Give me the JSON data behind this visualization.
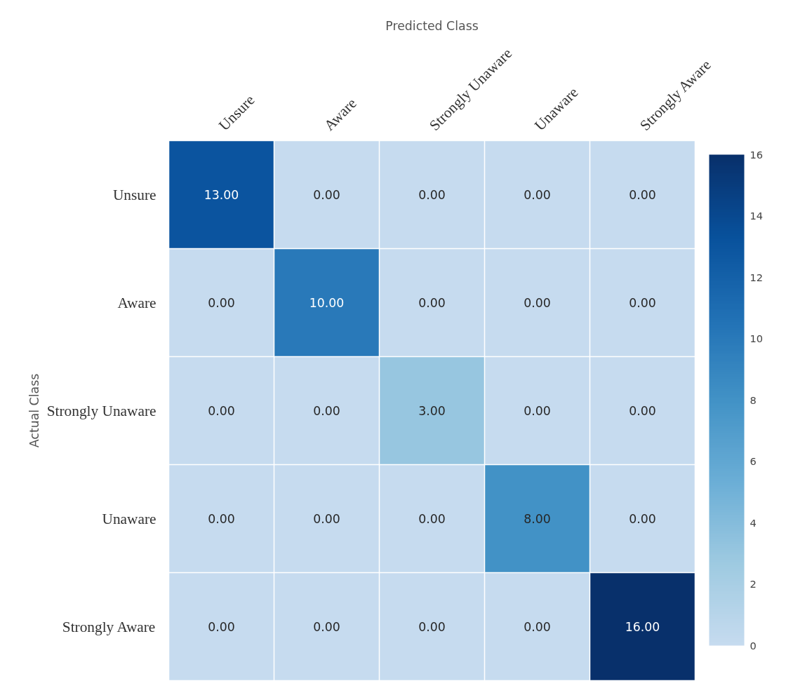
{
  "chart_data": {
    "type": "heatmap",
    "xlabel": "Predicted Class",
    "ylabel": "Actual Class",
    "categories": [
      "Unsure",
      "Aware",
      "Strongly Unaware",
      "Unaware",
      "Strongly Aware"
    ],
    "y_categories": [
      "Unsure",
      "Aware",
      "Strongly Unaware",
      "Unaware",
      "Strongly Aware"
    ],
    "cells": [
      [
        13,
        0,
        0,
        0,
        0
      ],
      [
        0,
        10,
        0,
        0,
        0
      ],
      [
        0,
        0,
        3,
        0,
        0
      ],
      [
        0,
        0,
        0,
        8,
        0
      ],
      [
        0,
        0,
        0,
        0,
        16
      ]
    ],
    "cell_labels": [
      [
        "13.00",
        "0.00",
        "0.00",
        "0.00",
        "0.00"
      ],
      [
        "0.00",
        "10.00",
        "0.00",
        "0.00",
        "0.00"
      ],
      [
        "0.00",
        "0.00",
        "3.00",
        "0.00",
        "0.00"
      ],
      [
        "0.00",
        "0.00",
        "0.00",
        "8.00",
        "0.00"
      ],
      [
        "0.00",
        "0.00",
        "0.00",
        "0.00",
        "16.00"
      ]
    ],
    "clim": [
      0,
      16
    ],
    "cticks": [
      0,
      2,
      4,
      6,
      8,
      10,
      12,
      14,
      16
    ]
  }
}
